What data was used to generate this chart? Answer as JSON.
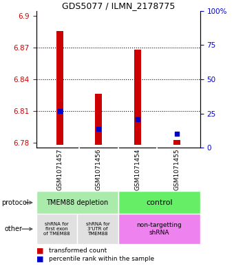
{
  "title": "GDS5077 / ILMN_2178775",
  "samples": [
    "GSM1071457",
    "GSM1071456",
    "GSM1071454",
    "GSM1071455"
  ],
  "red_values": [
    6.886,
    6.826,
    6.868,
    6.782
  ],
  "blue_values": [
    6.81,
    6.793,
    6.802,
    6.788
  ],
  "ylim_left": [
    6.775,
    6.905
  ],
  "ylim_right": [
    0,
    100
  ],
  "yticks_left": [
    6.78,
    6.81,
    6.84,
    6.87,
    6.9
  ],
  "yticks_right": [
    0,
    25,
    50,
    75,
    100
  ],
  "ytick_labels_left": [
    "6.78",
    "6.81",
    "6.84",
    "6.87",
    "6.9"
  ],
  "ytick_labels_right": [
    "0",
    "25",
    "50",
    "75",
    "100%"
  ],
  "bar_base": 6.778,
  "bar_width": 0.18,
  "grid_values": [
    6.81,
    6.84,
    6.87
  ],
  "protocol_labels": [
    "TMEM88 depletion",
    "control"
  ],
  "other_labels": [
    "shRNA for\nfirst exon\nof TMEM88",
    "shRNA for\n3'UTR of\nTMEM88",
    "non-targetting\nshRNA"
  ],
  "protocol_color_left": "#AAEAAA",
  "protocol_color_right": "#66EE66",
  "other_color_grey": "#E0E0E0",
  "other_color_purple": "#EE82EE",
  "label_row_color": "#D3D3D3",
  "left_label_color": "#CC0000",
  "right_label_color": "#0000CC",
  "bar_color": "#CC0000",
  "blue_marker_color": "#0000CC"
}
